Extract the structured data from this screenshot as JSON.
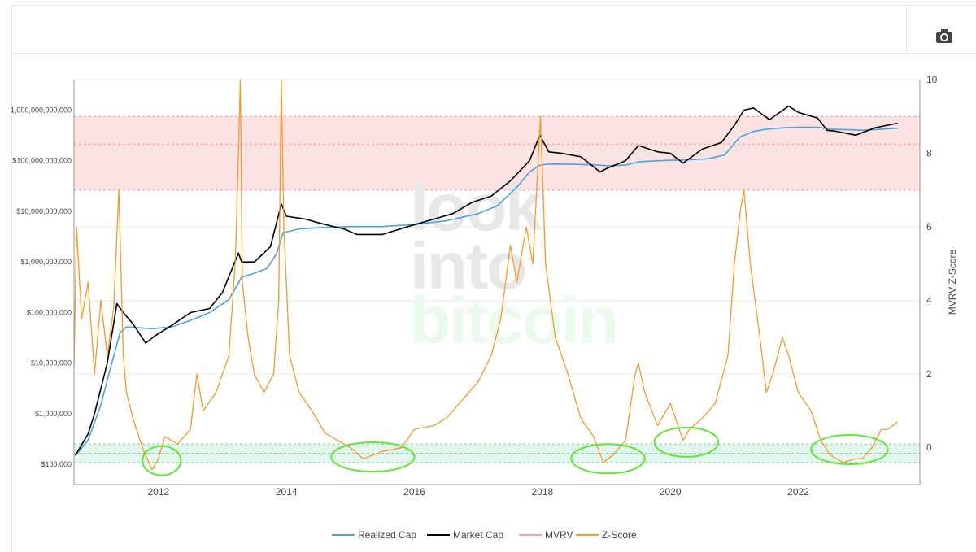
{
  "toolbar": {
    "camera_icon": "camera-icon"
  },
  "chart_data": {
    "type": "line",
    "title": "",
    "y_left": {
      "scale": "log",
      "range": [
        40000,
        4000000000000
      ],
      "ticks": [
        {
          "v": 100000,
          "label": "$100,000"
        },
        {
          "v": 1000000,
          "label": "$1,000,000"
        },
        {
          "v": 10000000,
          "label": "$10,000,000"
        },
        {
          "v": 100000000,
          "label": "$100,000,000"
        },
        {
          "v": 1000000000,
          "label": "$1,000,000,000"
        },
        {
          "v": 10000000000,
          "label": "$10,000,000,000"
        },
        {
          "v": 100000000000,
          "label": "$100,000,000,000"
        },
        {
          "v": 1000000000000,
          "label": "1,000,000,000,000"
        }
      ]
    },
    "y_right": {
      "label": "MVRV Z-Score",
      "range": [
        -1,
        10
      ],
      "ticks": [
        0,
        2,
        4,
        6,
        8,
        10
      ]
    },
    "x_axis": {
      "range": [
        2010.68,
        2023.9
      ],
      "ticks": [
        "2012",
        "2014",
        "2016",
        "2018",
        "2020",
        "2022"
      ]
    },
    "bands": {
      "red_zone_zscore": [
        7,
        9
      ],
      "red_mid_zscore": 8.25,
      "green_zone_zscore": [
        -0.4,
        0.1
      ],
      "green_mid_zscore": -0.15
    },
    "watermark": [
      "look",
      "into",
      "bitcoin"
    ],
    "series": [
      {
        "name": "Realized Cap",
        "color": "#4aa3df",
        "axis": "left",
        "x": [
          2010.7,
          2010.9,
          2011.1,
          2011.25,
          2011.4,
          2011.5,
          2011.7,
          2011.9,
          2012.2,
          2012.5,
          2012.8,
          2013.1,
          2013.3,
          2013.5,
          2013.7,
          2013.85,
          2013.95,
          2014.2,
          2014.6,
          2015.0,
          2015.5,
          2016.0,
          2016.5,
          2017.0,
          2017.3,
          2017.6,
          2017.8,
          2017.95,
          2018.05,
          2018.2,
          2018.5,
          2018.8,
          2019.0,
          2019.3,
          2019.5,
          2019.8,
          2020.0,
          2020.3,
          2020.6,
          2020.85,
          2021.0,
          2021.1,
          2021.3,
          2021.5,
          2021.8,
          2022.0,
          2022.3,
          2022.5,
          2022.8,
          2023.0,
          2023.3,
          2023.55
        ],
        "y": [
          150000,
          300000,
          1500000,
          8000000,
          40000000,
          52000000,
          50000000,
          48000000,
          52000000,
          70000000,
          100000000,
          180000000,
          500000000,
          600000000,
          750000000,
          1500000000,
          3800000000,
          4500000000,
          4800000000,
          5000000000,
          5000000000,
          5500000000,
          6500000000,
          9000000000,
          13000000000,
          30000000000,
          60000000000,
          80000000000,
          85000000000,
          86000000000,
          85000000000,
          83000000000,
          80000000000,
          82000000000,
          95000000000,
          100000000000,
          102000000000,
          105000000000,
          110000000000,
          130000000000,
          220000000000,
          300000000000,
          380000000000,
          420000000000,
          450000000000,
          460000000000,
          460000000000,
          420000000000,
          410000000000,
          400000000000,
          420000000000,
          440000000000
        ]
      },
      {
        "name": "Market Cap",
        "color": "#000000",
        "axis": "left",
        "x": [
          2010.7,
          2010.9,
          2011.0,
          2011.2,
          2011.35,
          2011.45,
          2011.6,
          2011.8,
          2011.95,
          2012.2,
          2012.5,
          2012.8,
          2013.0,
          2013.25,
          2013.3,
          2013.5,
          2013.75,
          2013.92,
          2014.0,
          2014.3,
          2014.6,
          2014.9,
          2015.1,
          2015.5,
          2015.9,
          2016.3,
          2016.6,
          2016.9,
          2017.2,
          2017.5,
          2017.8,
          2017.96,
          2018.1,
          2018.3,
          2018.6,
          2018.9,
          2019.0,
          2019.3,
          2019.5,
          2019.8,
          2020.0,
          2020.2,
          2020.5,
          2020.8,
          2021.0,
          2021.15,
          2021.3,
          2021.55,
          2021.85,
          2022.0,
          2022.3,
          2022.45,
          2022.6,
          2022.9,
          2023.2,
          2023.55
        ],
        "y": [
          150000,
          400000,
          1000000,
          10000000,
          150000000,
          100000000,
          60000000,
          25000000,
          35000000,
          55000000,
          100000000,
          120000000,
          250000000,
          1500000000,
          1000000000,
          1000000000,
          2000000000,
          14000000000,
          8000000000,
          7000000000,
          5500000000,
          4500000000,
          3500000000,
          3500000000,
          5000000000,
          7000000000,
          9000000000,
          15000000000,
          20000000000,
          40000000000,
          100000000000,
          320000000000,
          150000000000,
          140000000000,
          120000000000,
          60000000000,
          70000000000,
          100000000000,
          200000000000,
          150000000000,
          140000000000,
          90000000000,
          170000000000,
          230000000000,
          500000000000,
          1000000000000,
          1100000000000,
          650000000000,
          1200000000000,
          900000000000,
          700000000000,
          400000000000,
          380000000000,
          320000000000,
          450000000000,
          550000000000
        ]
      },
      {
        "name": "MVRV",
        "color": "#f4a3a8",
        "axis": "left",
        "x": [],
        "y": []
      },
      {
        "name": "Z-Score",
        "color": "#f29a2e",
        "axis": "right",
        "x": [
          2010.68,
          2010.72,
          2010.8,
          2010.9,
          2011.0,
          2011.1,
          2011.2,
          2011.3,
          2011.38,
          2011.45,
          2011.5,
          2011.6,
          2011.75,
          2011.9,
          2012.0,
          2012.1,
          2012.3,
          2012.5,
          2012.6,
          2012.7,
          2012.9,
          2013.0,
          2013.1,
          2013.2,
          2013.25,
          2013.28,
          2013.31,
          2013.4,
          2013.5,
          2013.65,
          2013.8,
          2013.88,
          2013.92,
          2013.96,
          2014.05,
          2014.2,
          2014.4,
          2014.6,
          2014.8,
          2015.0,
          2015.2,
          2015.5,
          2015.8,
          2016.0,
          2016.3,
          2016.5,
          2016.7,
          2017.0,
          2017.2,
          2017.35,
          2017.5,
          2017.6,
          2017.75,
          2017.85,
          2017.97,
          2018.05,
          2018.2,
          2018.4,
          2018.6,
          2018.8,
          2018.95,
          2019.1,
          2019.3,
          2019.45,
          2019.5,
          2019.6,
          2019.8,
          2020.0,
          2020.2,
          2020.3,
          2020.5,
          2020.7,
          2020.9,
          2021.0,
          2021.1,
          2021.15,
          2021.25,
          2021.4,
          2021.5,
          2021.6,
          2021.75,
          2021.85,
          2022.0,
          2022.2,
          2022.35,
          2022.5,
          2022.7,
          2022.9,
          2023.0,
          2023.15,
          2023.3,
          2023.4,
          2023.55
        ],
        "y": [
          2.2,
          6.0,
          3.5,
          4.5,
          2.0,
          4.0,
          2.5,
          3.8,
          7.0,
          2.5,
          1.5,
          0.8,
          0.0,
          -0.6,
          -0.3,
          0.3,
          0.1,
          0.5,
          2.0,
          1.0,
          1.5,
          2.0,
          2.5,
          5.0,
          8.0,
          10.0,
          4.5,
          3.0,
          2.0,
          1.5,
          2.0,
          4.0,
          10.0,
          6.0,
          2.5,
          1.5,
          1.0,
          0.4,
          0.2,
          0.0,
          -0.3,
          -0.1,
          0.0,
          0.5,
          0.6,
          0.8,
          1.2,
          1.8,
          2.5,
          3.5,
          5.5,
          4.5,
          6.0,
          5.0,
          9.0,
          5.0,
          3.0,
          2.0,
          0.8,
          0.3,
          -0.4,
          -0.2,
          0.2,
          2.0,
          2.3,
          1.5,
          0.6,
          1.2,
          0.2,
          0.5,
          0.8,
          1.2,
          2.5,
          5.0,
          6.5,
          7.0,
          5.0,
          3.0,
          1.5,
          2.0,
          3.0,
          2.5,
          1.5,
          1.0,
          0.2,
          -0.2,
          -0.4,
          -0.3,
          -0.3,
          0.0,
          0.5,
          0.5,
          0.7
        ]
      }
    ],
    "legend": [
      {
        "label": "Realized Cap",
        "color": "#4aa3df"
      },
      {
        "label": "Market Cap",
        "color": "#000000"
      },
      {
        "label": "MVRV",
        "color": "#f4a3a8"
      },
      {
        "label": "Z-Score",
        "color": "#f29a2e"
      }
    ],
    "highlight_circles": [
      {
        "x_start": 2011.75,
        "x_end": 2012.35,
        "zscore": -0.35
      },
      {
        "x_start": 2014.7,
        "x_end": 2016.0,
        "zscore": -0.25
      },
      {
        "x_start": 2018.45,
        "x_end": 2019.6,
        "zscore": -0.3
      },
      {
        "x_start": 2019.75,
        "x_end": 2020.75,
        "zscore": 0.15
      },
      {
        "x_start": 2022.2,
        "x_end": 2023.4,
        "zscore": -0.05
      }
    ]
  }
}
